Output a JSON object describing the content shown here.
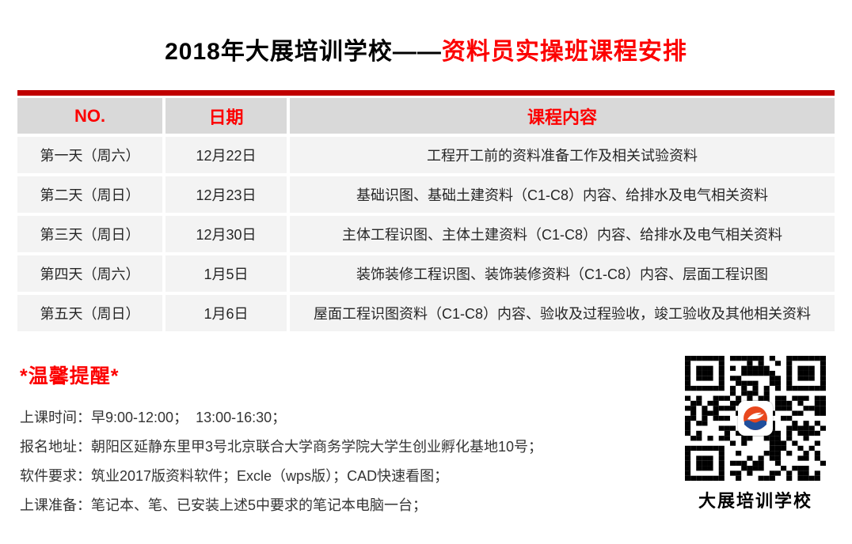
{
  "title": {
    "black_part": "2018年大展培训学校——",
    "red_part": "资料员实操班课程安排"
  },
  "table": {
    "headers": [
      "NO.",
      "日期",
      "课程内容"
    ],
    "rows": [
      {
        "no": "第一天（周六）",
        "date": "12月22日",
        "content": "工程开工前的资料准备工作及相关试验资料"
      },
      {
        "no": "第二天（周日）",
        "date": "12月23日",
        "content": "基础识图、基础土建资料（C1-C8）内容、给排水及电气相关资料"
      },
      {
        "no": "第三天（周日）",
        "date": "12月30日",
        "content": "主体工程识图、主体土建资料（C1-C8）内容、给排水及电气相关资料"
      },
      {
        "no": "第四天（周六）",
        "date": "1月5日",
        "content": "装饰装修工程识图、装饰装修资料（C1-C8）内容、层面工程识图"
      },
      {
        "no": "第五天（周日）",
        "date": "1月6日",
        "content": "屋面工程识图资料（C1-C8）内容、验收及过程验收，竣工验收及其他相关资料"
      }
    ]
  },
  "reminder": {
    "heading": "*温馨提醒*",
    "lines": [
      "上课时间：早9:00-12:00；  13:00-16:30；",
      "报名地址：朝阳区延静东里甲3号北京联合大学商务学院大学生创业孵化基地10号；",
      "软件要求：筑业2017版资料软件；Excle（wps版）；CAD快速看图；",
      "上课准备：笔记本、笔、已安装上述5中要求的笔记本电脑一台；"
    ]
  },
  "qr": {
    "caption": "大展培训学校",
    "logo_icon": "school-logo"
  },
  "colors": {
    "title_red": "#fc0000",
    "top_bar_red": "#c00000",
    "header_bg": "#d9d9d9",
    "row_bg": "#f3f3f3",
    "logo_orange": "#e8481e",
    "logo_blue": "#1f4e9c"
  }
}
